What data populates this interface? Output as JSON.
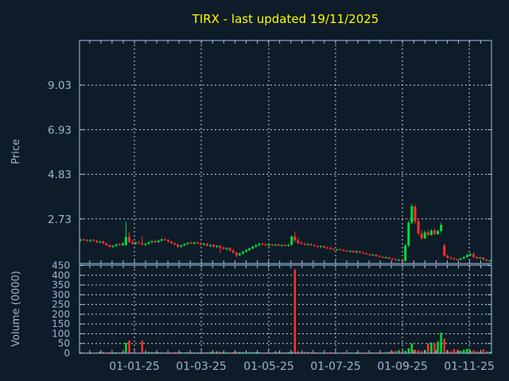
{
  "title": {
    "text": "TIRX - last updated 19/11/2025"
  },
  "colors": {
    "background": "#0e1b29",
    "frame": "#a6c1de",
    "grid": "#c9d2da",
    "tick_text": "#9db5d2",
    "title_text": "#fdfd00",
    "up": "#00e033",
    "down": "#ff3030"
  },
  "chart_data": {
    "type": "candlestick_with_volume",
    "symbol": "TIRX",
    "last_updated": "19/11/2025",
    "price_axis": {
      "label": "Price",
      "tick_labels": [
        "2.73",
        "4.83",
        "6.93",
        "9.03"
      ],
      "tick_values": [
        2.73,
        4.83,
        6.93,
        9.03
      ],
      "ylim": [
        0.63,
        11.13
      ],
      "grid": true
    },
    "volume_axis": {
      "label": "Volume (0000)",
      "tick_labels": [
        "0",
        "50",
        "100",
        "150",
        "200",
        "250",
        "300",
        "350",
        "400",
        "450"
      ],
      "tick_values": [
        0,
        50,
        100,
        150,
        200,
        250,
        300,
        350,
        400,
        450
      ],
      "ylim": [
        0,
        452
      ],
      "grid": true
    },
    "x_axis": {
      "tick_labels": [
        "01-01-25",
        "01-03-25",
        "01-05-25",
        "01-07-25",
        "01-09-25",
        "01-11-25"
      ],
      "range_note": "daily candles, approx Nov 2024 through 19 Nov 2025"
    },
    "candles_format": [
      "open",
      "high",
      "low",
      "close",
      "volume_0000"
    ],
    "candles": [
      [
        1.72,
        1.8,
        1.65,
        1.76,
        6
      ],
      [
        1.76,
        1.82,
        1.7,
        1.73,
        4
      ],
      [
        1.73,
        1.78,
        1.66,
        1.7,
        3
      ],
      [
        1.7,
        1.76,
        1.64,
        1.74,
        5
      ],
      [
        1.74,
        1.79,
        1.68,
        1.71,
        3
      ],
      [
        1.71,
        1.74,
        1.6,
        1.63,
        4
      ],
      [
        1.63,
        1.7,
        1.58,
        1.67,
        8
      ],
      [
        1.67,
        1.71,
        1.55,
        1.58,
        7
      ],
      [
        1.58,
        1.62,
        1.45,
        1.49,
        5
      ],
      [
        1.49,
        1.55,
        1.38,
        1.42,
        6
      ],
      [
        1.42,
        1.5,
        1.35,
        1.47,
        4
      ],
      [
        1.47,
        1.56,
        1.42,
        1.53,
        5
      ],
      [
        1.53,
        1.6,
        1.47,
        1.5,
        4
      ],
      [
        1.5,
        1.62,
        1.46,
        1.58,
        6
      ],
      [
        1.5,
        2.6,
        1.45,
        1.88,
        53
      ],
      [
        1.88,
        2.1,
        1.6,
        1.65,
        65
      ],
      [
        1.65,
        1.75,
        1.52,
        1.57,
        5
      ],
      [
        1.57,
        1.66,
        1.5,
        1.62,
        3
      ],
      [
        1.62,
        1.7,
        1.55,
        1.58,
        3
      ],
      [
        1.58,
        1.92,
        1.48,
        1.52,
        65
      ],
      [
        1.52,
        1.6,
        1.45,
        1.56,
        4
      ],
      [
        1.56,
        1.66,
        1.52,
        1.63,
        7
      ],
      [
        1.63,
        1.72,
        1.58,
        1.68,
        6
      ],
      [
        1.68,
        1.76,
        1.6,
        1.64,
        6
      ],
      [
        1.64,
        1.74,
        1.6,
        1.71,
        5
      ],
      [
        1.71,
        1.8,
        1.66,
        1.77,
        6
      ],
      [
        1.77,
        1.83,
        1.7,
        1.73,
        4
      ],
      [
        1.73,
        1.78,
        1.62,
        1.66,
        5
      ],
      [
        1.66,
        1.7,
        1.55,
        1.58,
        4
      ],
      [
        1.58,
        1.64,
        1.48,
        1.52,
        6
      ],
      [
        1.52,
        1.56,
        1.36,
        1.42,
        7
      ],
      [
        1.42,
        1.52,
        1.38,
        1.48,
        5
      ],
      [
        1.48,
        1.58,
        1.44,
        1.55,
        4
      ],
      [
        1.55,
        1.64,
        1.5,
        1.6,
        6
      ],
      [
        1.6,
        1.68,
        1.54,
        1.57,
        4
      ],
      [
        1.57,
        1.66,
        1.52,
        1.62,
        5
      ],
      [
        1.62,
        1.67,
        1.54,
        1.58,
        4
      ],
      [
        1.58,
        1.63,
        1.48,
        1.52,
        5
      ],
      [
        1.52,
        1.6,
        1.46,
        1.56,
        4
      ],
      [
        1.56,
        1.6,
        1.44,
        1.47,
        5
      ],
      [
        1.47,
        1.54,
        1.4,
        1.5,
        6
      ],
      [
        1.5,
        1.55,
        1.38,
        1.42,
        8
      ],
      [
        1.42,
        1.5,
        1.35,
        1.46,
        10
      ],
      [
        1.46,
        1.5,
        1.1,
        1.38,
        8
      ],
      [
        1.38,
        1.44,
        1.28,
        1.32,
        6
      ],
      [
        1.32,
        1.4,
        1.25,
        1.36,
        6
      ],
      [
        1.36,
        1.38,
        1.2,
        1.24,
        5
      ],
      [
        1.24,
        1.3,
        1.1,
        1.14,
        6
      ],
      [
        1.14,
        1.18,
        0.91,
        1.02,
        8
      ],
      [
        1.02,
        1.14,
        0.98,
        1.1,
        7
      ],
      [
        1.1,
        1.22,
        1.06,
        1.18,
        6
      ],
      [
        1.18,
        1.3,
        1.14,
        1.26,
        5
      ],
      [
        1.26,
        1.38,
        1.22,
        1.34,
        6
      ],
      [
        1.34,
        1.46,
        1.3,
        1.42,
        5
      ],
      [
        1.42,
        1.54,
        1.38,
        1.5,
        6
      ],
      [
        1.5,
        1.6,
        1.44,
        1.56,
        5
      ],
      [
        1.56,
        1.62,
        1.48,
        1.52,
        4
      ],
      [
        1.52,
        1.58,
        1.45,
        1.48,
        4
      ],
      [
        1.48,
        1.56,
        1.43,
        1.53,
        5
      ],
      [
        1.53,
        1.58,
        1.46,
        1.49,
        4
      ],
      [
        1.49,
        1.56,
        1.44,
        1.52,
        10
      ],
      [
        1.52,
        1.57,
        1.45,
        1.47,
        6
      ],
      [
        1.47,
        1.53,
        1.42,
        1.5,
        5
      ],
      [
        1.5,
        1.56,
        1.44,
        1.46,
        4
      ],
      [
        1.46,
        1.54,
        1.42,
        1.51,
        6
      ],
      [
        1.51,
        1.95,
        1.48,
        1.9,
        8
      ],
      [
        1.9,
        2.15,
        1.65,
        1.72,
        430
      ],
      [
        1.72,
        1.85,
        1.55,
        1.6,
        10
      ],
      [
        1.6,
        1.68,
        1.52,
        1.56,
        5
      ],
      [
        1.56,
        1.62,
        1.48,
        1.52,
        8
      ],
      [
        1.52,
        1.58,
        1.45,
        1.55,
        6
      ],
      [
        1.55,
        1.58,
        1.46,
        1.49,
        5
      ],
      [
        1.49,
        1.54,
        1.42,
        1.45,
        4
      ],
      [
        1.45,
        1.5,
        1.38,
        1.42,
        5
      ],
      [
        1.42,
        1.48,
        1.36,
        1.45,
        3
      ],
      [
        1.45,
        1.48,
        1.36,
        1.38,
        4
      ],
      [
        1.38,
        1.43,
        1.31,
        1.34,
        4
      ],
      [
        1.34,
        1.46,
        1.28,
        1.3,
        6
      ],
      [
        1.3,
        1.36,
        1.24,
        1.27,
        4
      ],
      [
        1.27,
        1.33,
        1.22,
        1.3,
        3
      ],
      [
        1.3,
        1.34,
        1.24,
        1.26,
        3
      ],
      [
        1.26,
        1.31,
        1.2,
        1.23,
        4
      ],
      [
        1.23,
        1.28,
        1.17,
        1.2,
        3
      ],
      [
        1.2,
        1.26,
        1.15,
        1.22,
        4
      ],
      [
        1.22,
        1.25,
        1.14,
        1.16,
        3
      ],
      [
        1.16,
        1.24,
        1.12,
        1.2,
        5
      ],
      [
        1.2,
        1.23,
        1.12,
        1.14,
        4
      ],
      [
        1.14,
        1.18,
        1.08,
        1.1,
        3
      ],
      [
        1.1,
        1.15,
        1.04,
        1.06,
        4
      ],
      [
        1.06,
        1.1,
        1.0,
        1.02,
        5
      ],
      [
        1.02,
        1.08,
        0.97,
        1.05,
        4
      ],
      [
        1.05,
        1.07,
        0.96,
        0.98,
        4
      ],
      [
        0.98,
        1.02,
        0.92,
        0.94,
        5
      ],
      [
        0.94,
        0.99,
        0.89,
        0.91,
        4
      ],
      [
        0.91,
        0.96,
        0.86,
        0.93,
        6
      ],
      [
        0.93,
        0.95,
        0.84,
        0.86,
        8
      ],
      [
        0.86,
        0.9,
        0.8,
        0.82,
        10
      ],
      [
        0.82,
        0.86,
        0.76,
        0.78,
        12
      ],
      [
        0.78,
        0.84,
        0.74,
        0.8,
        15
      ],
      [
        0.8,
        0.84,
        0.72,
        0.75,
        10
      ],
      [
        0.75,
        1.55,
        0.73,
        1.48,
        12
      ],
      [
        1.48,
        2.65,
        1.4,
        2.55,
        25
      ],
      [
        2.55,
        3.45,
        2.48,
        3.32,
        50
      ],
      [
        3.32,
        3.4,
        2.5,
        2.62,
        18
      ],
      [
        2.62,
        2.75,
        1.95,
        2.05,
        15
      ],
      [
        2.05,
        2.2,
        1.7,
        1.82,
        12
      ],
      [
        1.82,
        2.18,
        1.78,
        2.1,
        15
      ],
      [
        2.1,
        2.22,
        1.92,
        1.98,
        50
      ],
      [
        1.98,
        2.25,
        1.94,
        2.18,
        55
      ],
      [
        2.18,
        2.28,
        1.96,
        2.02,
        50
      ],
      [
        2.02,
        2.22,
        1.98,
        2.16,
        60
      ],
      [
        2.16,
        2.55,
        2.1,
        2.45,
        105
      ],
      [
        1.48,
        1.55,
        0.95,
        1.0,
        75
      ],
      [
        1.0,
        1.06,
        0.85,
        0.9,
        15
      ],
      [
        0.9,
        0.96,
        0.84,
        0.87,
        10
      ],
      [
        0.87,
        0.92,
        0.8,
        0.83,
        20
      ],
      [
        0.83,
        0.88,
        0.78,
        0.81,
        15
      ],
      [
        0.81,
        0.9,
        0.79,
        0.87,
        12
      ],
      [
        0.87,
        0.97,
        0.84,
        0.94,
        18
      ],
      [
        0.94,
        1.1,
        0.91,
        1.02,
        22
      ],
      [
        1.02,
        1.12,
        0.98,
        1.07,
        14
      ],
      [
        1.07,
        1.15,
        0.9,
        0.94,
        15
      ],
      [
        0.94,
        0.98,
        0.86,
        0.88,
        10
      ],
      [
        0.88,
        0.94,
        0.84,
        0.91,
        8
      ],
      [
        0.91,
        0.93,
        0.78,
        0.81,
        20
      ],
      [
        0.81,
        0.85,
        0.72,
        0.76,
        10
      ],
      [
        0.74,
        0.8,
        0.7,
        0.78,
        8
      ]
    ]
  }
}
